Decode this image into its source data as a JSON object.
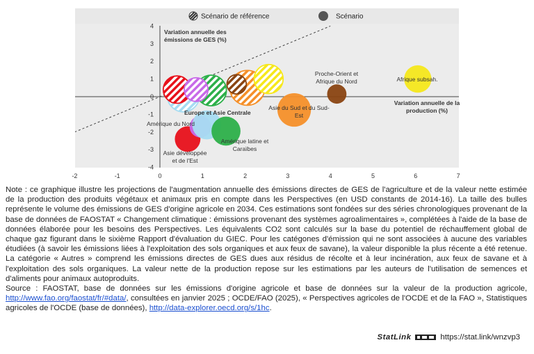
{
  "chart_data": {
    "type": "scatter",
    "legend": {
      "position": "top",
      "items": [
        {
          "label": "Scénario de référence",
          "style": "hatched"
        },
        {
          "label": "Scénario",
          "style": "solid"
        }
      ]
    },
    "x_label": "Variation annuelle de la production (%)",
    "y_label": "Variation annuelle des émissions de GES (%)",
    "xlim": [
      -2,
      7
    ],
    "ylim": [
      -4,
      4
    ],
    "x_ticks": [
      "-2",
      "-1",
      "0",
      "1",
      "2",
      "3",
      "4",
      "5",
      "6",
      "7"
    ],
    "y_ticks": [
      "4",
      "3",
      "2",
      "1",
      "0",
      "-1",
      "-2",
      "-3",
      "-4"
    ],
    "diagonal": true,
    "region_labels": {
      "europe": "Europe et Asie Centrale",
      "north_america": "Amérique du Nord",
      "latin_america": "Amérique latine et Caraïbes",
      "east_asia": "Asie développée et de l'Est",
      "south_asia": "Asie du Sud et du Sud-Est",
      "middle_east": "Proche-Orient et Afrique du Nord",
      "africa": "Afrique subsah."
    },
    "series": [
      {
        "name": "Scénario de référence",
        "points": [
          {
            "region": "Asie développée et de l'Est",
            "x": 0.4,
            "y": 0.4,
            "size": 0.8,
            "color": "#e8111b"
          },
          {
            "region": "Amérique du Nord",
            "x": 0.85,
            "y": 0.4,
            "size": 0.6,
            "color": "#c86ae8"
          },
          {
            "region": "Europe et Asie Centrale",
            "x": 0.55,
            "y": 0.05,
            "size": 1.1,
            "color": "#a6dcf2"
          },
          {
            "region": "Amérique latine et Caraïbes",
            "x": 1.2,
            "y": 0.35,
            "size": 1.0,
            "color": "#2db04a"
          },
          {
            "region": "Proche-Orient et Afrique du Nord",
            "x": 1.8,
            "y": 0.7,
            "size": 0.4,
            "color": "#8a4512"
          },
          {
            "region": "Asie du Sud et du Sud-Est",
            "x": 2.05,
            "y": 0.5,
            "size": 1.3,
            "color": "#f5902a"
          },
          {
            "region": "Afrique subsah.",
            "x": 2.55,
            "y": 1.0,
            "size": 0.9,
            "color": "#f6e81c"
          }
        ]
      },
      {
        "name": "Scénario",
        "points": [
          {
            "region": "Asie développée et de l'Est",
            "x": 0.65,
            "y": -2.4,
            "size": 0.7,
            "color": "#e8111b"
          },
          {
            "region": "Amérique du Nord",
            "x": 0.95,
            "y": -1.7,
            "size": 0.5,
            "color": "#c86ae8"
          },
          {
            "region": "Europe et Asie Centrale",
            "x": 1.1,
            "y": -1.6,
            "size": 0.9,
            "color": "#a6dcf2"
          },
          {
            "region": "Amérique latine et Caraïbes",
            "x": 1.55,
            "y": -1.95,
            "size": 0.9,
            "color": "#2db04a"
          },
          {
            "region": "Proche-Orient et Afrique du Nord",
            "x": 4.15,
            "y": 0.15,
            "size": 0.4,
            "color": "#8a4512"
          },
          {
            "region": "Asie du Sud et du Sud-Est",
            "x": 3.15,
            "y": -0.75,
            "size": 1.2,
            "color": "#f5902a"
          },
          {
            "region": "Afrique subsah.",
            "x": 6.05,
            "y": 1.0,
            "size": 0.8,
            "color": "#f6e81c"
          }
        ]
      }
    ]
  },
  "note": {
    "text": "Note : ce graphique illustre les projections de l'augmentation annuelle des émissions directes de GES de l'agriculture et de la valeur nette estimée de la production des produits végétaux et animaux pris en compte dans les Perspectives (en USD constants de 2014-16). La taille des bulles représente le volume des émissions de GES d'origine agricole en 2034. Ces estimations sont fondées sur des séries chronologiques provenant de la base de données de FAOSTAT « Changement climatique : émissions provenant des systèmes agroalimentaires », complétées à l'aide de la base de données élaborée pour les besoins des Perspectives. Les équivalents CO2 sont calculés sur la base du potentiel de réchauffement global de chaque gaz figurant dans le sixième Rapport d'évaluation du GIEC. Pour les catégones d'émission qui ne sont associées à aucune des variables étudiées (à savoir les émissions liées à l'exploitation des sols organiques et aux feux de savane), la valeur disponible la plus récente a été retenue. La catégorie « Autres » comprend les émissions directes de GES dues aux résidus de récolte et à leur incinération, aux feux de savane et à l'exploitation des sols organiques. La valeur nette de la production repose sur les estimations par les auteurs de l'utilisation de semences et d'aliments pour animaux autoproduits."
  },
  "source": {
    "part1": "Source : FAOSTAT, base de données sur les émissions d'origine agricole et base de données sur la valeur de la production agricole, ",
    "link1": "http://www.fao.org/faostat/fr/#data/",
    "part2": ", consultées en janvier 2025 ; OCDE/FAO (2025), « Perspectives agricoles de l'OCDE et de la FAO », Statistiques agricoles de l'OCDE (base de données), ",
    "link2": "http://data-explorer.oecd.org/s/1hc",
    "part3": "."
  },
  "statlink": {
    "brand": "StatLink",
    "url": "https://stat.link/wnzvp3"
  }
}
